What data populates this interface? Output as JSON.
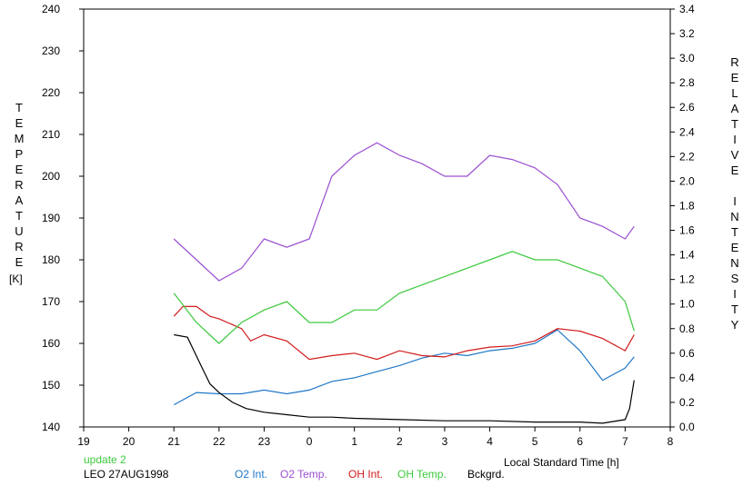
{
  "chart_data": {
    "type": "line",
    "x_axis": {
      "label": "Local Standard Time [h]",
      "range": [
        19,
        32
      ],
      "tick_labels": [
        "19",
        "20",
        "21",
        "22",
        "23",
        "0",
        "1",
        "2",
        "3",
        "4",
        "5",
        "6",
        "7",
        "8"
      ]
    },
    "y_left": {
      "label": "TEMPERATURE",
      "unit": "[K]",
      "range": [
        140,
        240
      ],
      "tick_labels": [
        "140",
        "150",
        "160",
        "170",
        "180",
        "190",
        "200",
        "210",
        "220",
        "230",
        "240"
      ]
    },
    "y_right": {
      "label": "RELATIVE INTENSITY",
      "range": [
        0.0,
        3.4
      ],
      "tick_labels": [
        "0.0",
        "0.2",
        "0.4",
        "0.6",
        "0.8",
        "1.0",
        "1.2",
        "1.4",
        "1.6",
        "1.8",
        "2.0",
        "2.2",
        "2.4",
        "2.6",
        "2.8",
        "3.0",
        "3.2",
        "3.4"
      ]
    },
    "grid": false,
    "legend_position": "bottom",
    "series": [
      {
        "name": "O2 Int.",
        "axis": "right",
        "color": "#1f78c8",
        "x": [
          21.0,
          21.5,
          22.0,
          22.5,
          23.0,
          23.5,
          24.0,
          24.5,
          25.0,
          25.5,
          26.0,
          26.5,
          27.0,
          27.5,
          28.0,
          28.5,
          29.0,
          29.5,
          30.0,
          30.5,
          31.0,
          31.2
        ],
        "y": [
          0.18,
          0.28,
          0.27,
          0.27,
          0.3,
          0.27,
          0.3,
          0.37,
          0.4,
          0.45,
          0.5,
          0.56,
          0.6,
          0.58,
          0.62,
          0.64,
          0.68,
          0.79,
          0.62,
          0.38,
          0.48,
          0.57
        ]
      },
      {
        "name": "O2 Temp.",
        "axis": "left",
        "color": "#9b4fd1",
        "x": [
          21.0,
          21.5,
          22.0,
          22.5,
          23.0,
          23.5,
          24.0,
          24.5,
          25.0,
          25.5,
          26.0,
          26.5,
          27.0,
          27.5,
          28.0,
          28.5,
          29.0,
          29.5,
          30.0,
          30.5,
          31.0,
          31.2
        ],
        "y": [
          185,
          180,
          175,
          178,
          185,
          183,
          185,
          200,
          205,
          208,
          205,
          203,
          200,
          200,
          205,
          204,
          202,
          198,
          190,
          188,
          185,
          188
        ]
      },
      {
        "name": "OH Int.",
        "axis": "right",
        "color": "#d11a1a",
        "x": [
          21.0,
          21.2,
          21.5,
          21.8,
          22.0,
          22.5,
          22.7,
          23.0,
          23.5,
          24.0,
          24.5,
          25.0,
          25.5,
          26.0,
          26.5,
          27.0,
          27.5,
          28.0,
          28.5,
          29.0,
          29.5,
          30.0,
          30.5,
          31.0,
          31.2
        ],
        "y": [
          0.9,
          0.98,
          0.98,
          0.9,
          0.88,
          0.8,
          0.7,
          0.75,
          0.7,
          0.55,
          0.58,
          0.6,
          0.55,
          0.62,
          0.58,
          0.57,
          0.62,
          0.65,
          0.66,
          0.7,
          0.8,
          0.78,
          0.72,
          0.62,
          0.75
        ]
      },
      {
        "name": "OH Temp.",
        "axis": "left",
        "color": "#3cc93c",
        "x": [
          21.0,
          21.5,
          22.0,
          22.5,
          23.0,
          23.5,
          24.0,
          24.5,
          25.0,
          25.5,
          26.0,
          26.5,
          27.0,
          27.5,
          28.0,
          28.5,
          29.0,
          29.5,
          30.0,
          30.5,
          31.0,
          31.2
        ],
        "y": [
          172,
          165,
          160,
          165,
          168,
          170,
          165,
          165,
          168,
          168,
          172,
          174,
          176,
          178,
          180,
          182,
          180,
          180,
          178,
          176,
          170,
          163
        ]
      },
      {
        "name": "Bckgrd.",
        "axis": "right",
        "color": "#000000",
        "x": [
          21.0,
          21.3,
          21.6,
          21.8,
          22.0,
          22.3,
          22.6,
          23.0,
          23.5,
          24.0,
          24.5,
          25.0,
          26.0,
          27.0,
          28.0,
          29.0,
          30.0,
          30.5,
          31.0,
          31.1,
          31.2
        ],
        "y": [
          0.75,
          0.73,
          0.5,
          0.35,
          0.28,
          0.2,
          0.15,
          0.12,
          0.1,
          0.08,
          0.08,
          0.07,
          0.06,
          0.05,
          0.05,
          0.04,
          0.04,
          0.03,
          0.06,
          0.15,
          0.38
        ]
      }
    ]
  },
  "annotations": {
    "status": "update 2",
    "station": "LEO 27AUG1998"
  }
}
